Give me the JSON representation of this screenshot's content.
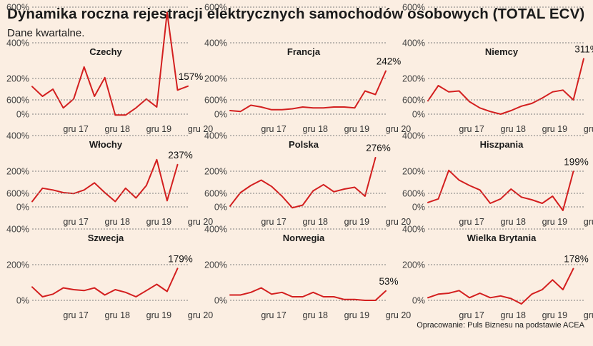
{
  "header": {
    "title": "Dynamika roczna rejestracji elektrycznych samochodów osobowych (TOTAL ECV)",
    "subtitle": "Dane kwartalne."
  },
  "footer": {
    "source": "Opracowanie: Puls Biznesu na podstawie ACEA"
  },
  "colors": {
    "background": "#fbeee2",
    "line": "#d31f1f",
    "grid": "#7d7d7d"
  },
  "chart_data": {
    "type": "line",
    "layout": "small-multiples 3x3",
    "y_ticks": [
      "0%",
      "200%",
      "400%",
      "600%"
    ],
    "ylim": [
      -40,
      640
    ],
    "x_ticks": [
      "gru 17",
      "gru 18",
      "gru 19",
      "gru 20"
    ],
    "x_tick_indices": [
      4,
      8,
      12,
      16
    ],
    "grid": "horizontal dotted",
    "panels": [
      {
        "name": "Czechy",
        "end_label": "157%",
        "values": [
          155,
          100,
          140,
          35,
          85,
          265,
          100,
          205,
          -5,
          -5,
          35,
          85,
          40,
          570,
          135,
          157
        ]
      },
      {
        "name": "Francja",
        "end_label": "242%",
        "values": [
          20,
          15,
          50,
          40,
          25,
          25,
          30,
          40,
          35,
          35,
          40,
          40,
          35,
          130,
          110,
          242
        ]
      },
      {
        "name": "Niemcy",
        "end_label": "311%",
        "values": [
          75,
          160,
          125,
          130,
          70,
          35,
          15,
          0,
          20,
          45,
          60,
          90,
          125,
          135,
          80,
          311
        ]
      },
      {
        "name": "Włochy",
        "end_label": "237%",
        "values": [
          30,
          105,
          95,
          80,
          75,
          95,
          135,
          80,
          30,
          105,
          50,
          120,
          265,
          35,
          237
        ]
      },
      {
        "name": "Polska",
        "end_label": "276%",
        "values": [
          5,
          80,
          120,
          150,
          115,
          60,
          -5,
          10,
          90,
          125,
          85,
          100,
          110,
          60,
          276
        ]
      },
      {
        "name": "Hiszpania",
        "end_label": "199%",
        "values": [
          25,
          45,
          205,
          150,
          120,
          95,
          20,
          45,
          100,
          55,
          40,
          20,
          60,
          -20,
          199
        ]
      },
      {
        "name": "Szwecja",
        "end_label": "179%",
        "values": [
          75,
          20,
          35,
          70,
          60,
          55,
          70,
          30,
          60,
          45,
          20,
          55,
          90,
          50,
          179
        ]
      },
      {
        "name": "Norwegia",
        "end_label": "53%",
        "values": [
          30,
          30,
          45,
          70,
          35,
          45,
          20,
          20,
          45,
          20,
          20,
          5,
          5,
          0,
          0,
          53
        ]
      },
      {
        "name": "Wielka Brytania",
        "end_label": "178%",
        "values": [
          15,
          35,
          40,
          55,
          15,
          40,
          15,
          25,
          10,
          -20,
          35,
          60,
          115,
          60,
          178
        ]
      }
    ]
  }
}
